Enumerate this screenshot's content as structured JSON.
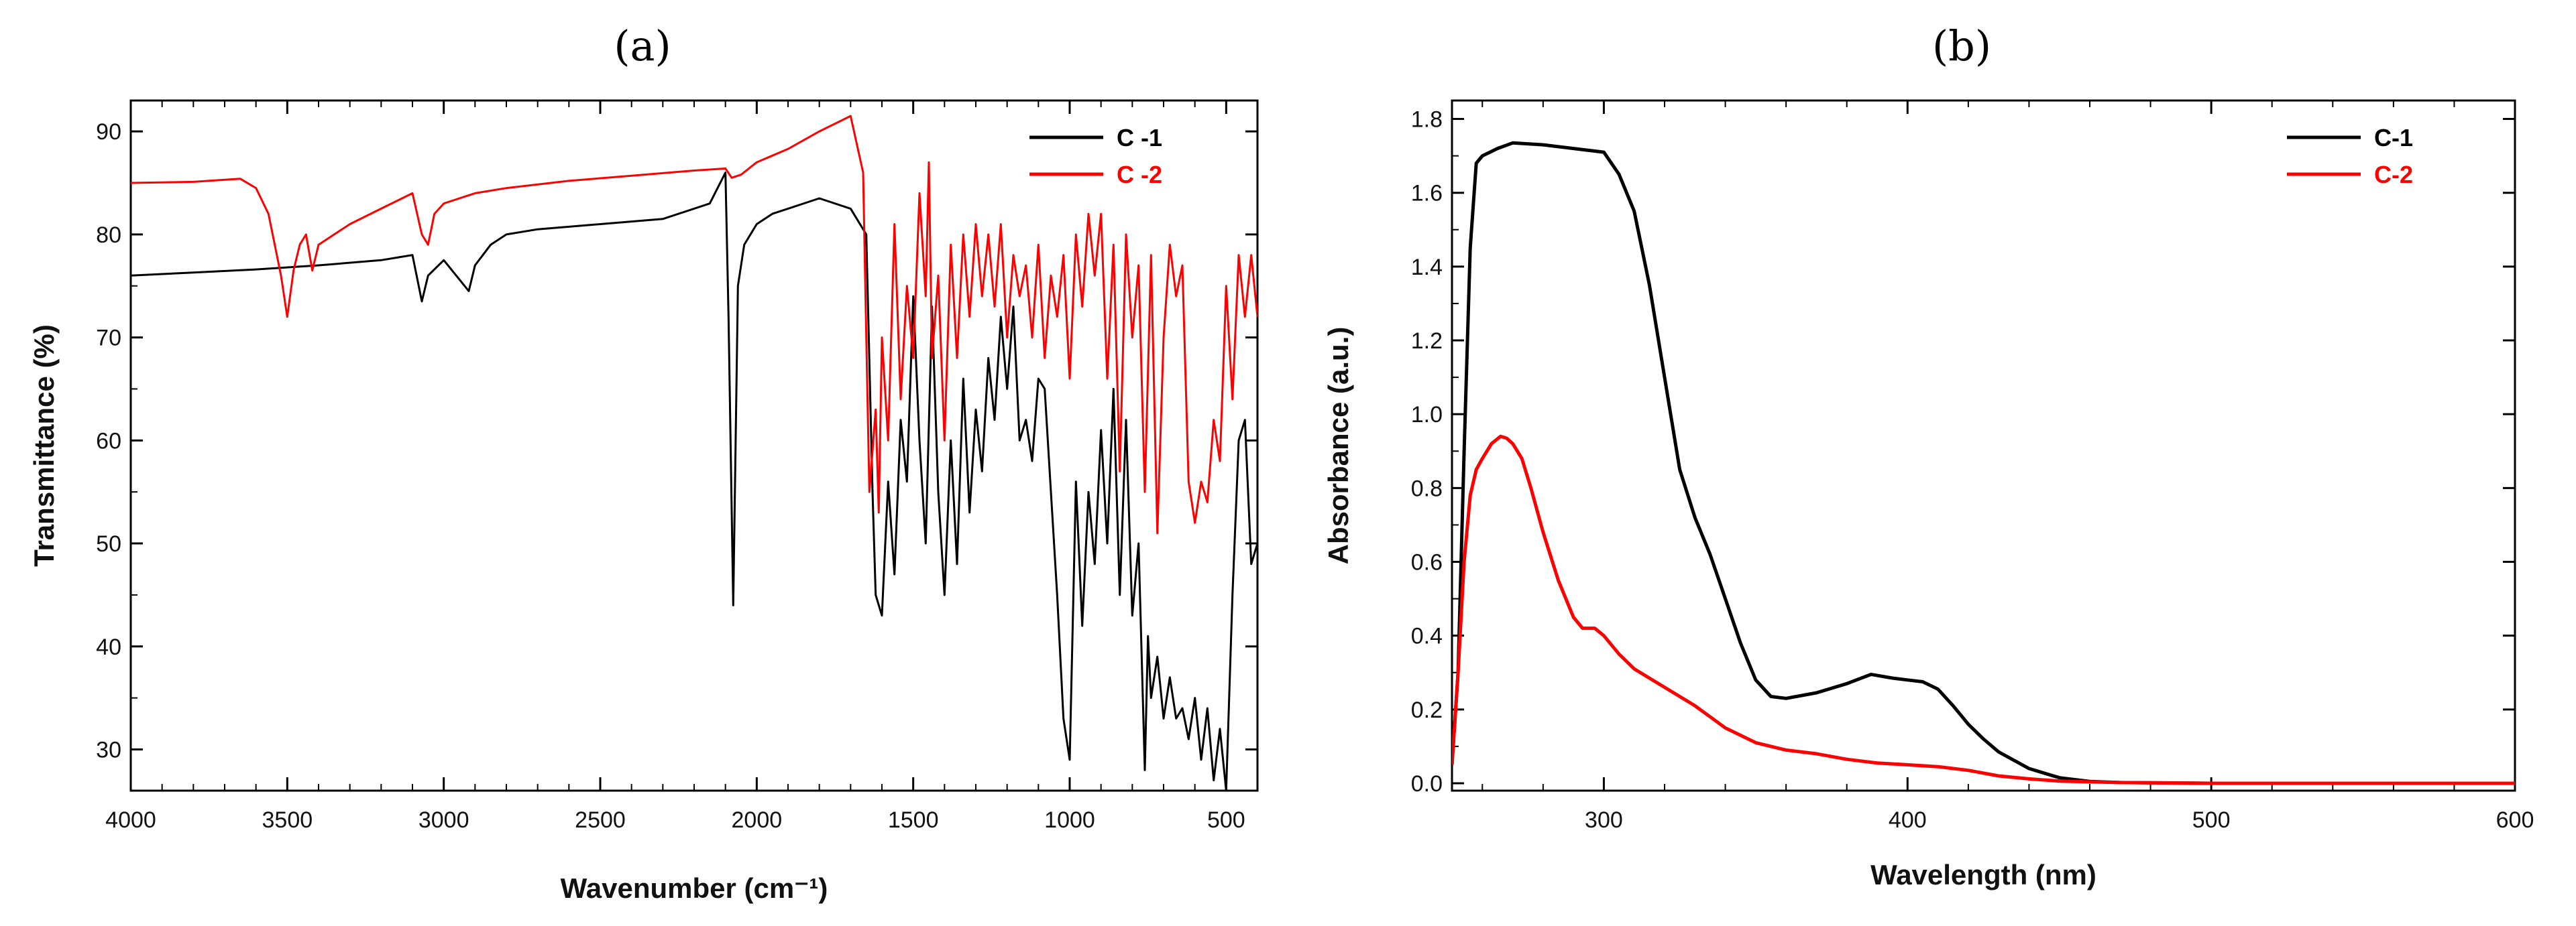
{
  "figure": {
    "panel_a_label": "(a)",
    "panel_b_label": "(b)"
  },
  "chart_data": [
    {
      "type": "line",
      "panel": "a",
      "title": "",
      "xlabel": "Wavenumber (cm⁻¹)",
      "ylabel": "Transmittance (%)",
      "xlim": [
        4000,
        400
      ],
      "ylim": [
        26,
        93
      ],
      "x_reversed": true,
      "xticks": [
        4000,
        3500,
        3000,
        2500,
        2000,
        1500,
        1000,
        500
      ],
      "yticks": [
        30,
        40,
        50,
        60,
        70,
        80,
        90
      ],
      "legend_position": "top-right",
      "series": [
        {
          "name": "C -1",
          "color": "#000000",
          "x": [
            4000,
            3800,
            3600,
            3400,
            3200,
            3100,
            3070,
            3050,
            3000,
            2960,
            2920,
            2900,
            2850,
            2800,
            2700,
            2500,
            2300,
            2150,
            2100,
            2090,
            2075,
            2060,
            2040,
            2000,
            1950,
            1900,
            1800,
            1700,
            1650,
            1630,
            1620,
            1600,
            1580,
            1560,
            1540,
            1520,
            1500,
            1480,
            1460,
            1440,
            1420,
            1400,
            1380,
            1360,
            1340,
            1320,
            1300,
            1280,
            1260,
            1240,
            1220,
            1200,
            1180,
            1160,
            1140,
            1120,
            1100,
            1080,
            1060,
            1040,
            1020,
            1000,
            980,
            960,
            940,
            920,
            900,
            880,
            860,
            840,
            820,
            800,
            780,
            760,
            750,
            740,
            720,
            700,
            680,
            660,
            640,
            620,
            600,
            580,
            560,
            540,
            520,
            500,
            480,
            460,
            440,
            420,
            400
          ],
          "values": [
            76,
            76.3,
            76.6,
            77,
            77.5,
            78,
            73.5,
            76,
            77.5,
            76,
            74.5,
            77,
            79,
            80,
            80.5,
            81,
            81.5,
            83,
            86,
            72,
            44,
            75,
            79,
            81,
            82,
            82.5,
            83.5,
            82.5,
            80,
            55,
            45,
            43,
            56,
            47,
            62,
            56,
            74,
            60,
            50,
            73,
            55,
            45,
            60,
            48,
            66,
            53,
            63,
            57,
            68,
            62,
            72,
            65,
            73,
            60,
            62,
            58,
            66,
            65,
            55,
            45,
            33,
            29,
            56,
            42,
            55,
            48,
            61,
            50,
            65,
            45,
            62,
            43,
            50,
            28,
            41,
            35,
            39,
            33,
            37,
            33,
            34,
            31,
            35,
            29,
            34,
            27,
            32,
            26,
            45,
            60,
            62,
            48,
            50
          ]
        },
        {
          "name": "C -2",
          "color": "#ff0000",
          "x": [
            4000,
            3800,
            3650,
            3600,
            3560,
            3520,
            3500,
            3480,
            3460,
            3440,
            3420,
            3400,
            3300,
            3200,
            3100,
            3070,
            3050,
            3030,
            3000,
            2950,
            2900,
            2800,
            2600,
            2400,
            2200,
            2100,
            2080,
            2050,
            2000,
            1900,
            1800,
            1700,
            1660,
            1650,
            1640,
            1620,
            1610,
            1600,
            1580,
            1560,
            1540,
            1520,
            1500,
            1480,
            1460,
            1450,
            1440,
            1420,
            1400,
            1380,
            1360,
            1340,
            1320,
            1300,
            1280,
            1260,
            1240,
            1220,
            1200,
            1180,
            1160,
            1140,
            1120,
            1100,
            1080,
            1060,
            1040,
            1020,
            1000,
            980,
            960,
            940,
            920,
            900,
            880,
            860,
            840,
            820,
            800,
            780,
            760,
            740,
            720,
            700,
            680,
            660,
            640,
            620,
            600,
            580,
            560,
            540,
            520,
            500,
            480,
            460,
            440,
            420,
            400
          ],
          "values": [
            85,
            85.1,
            85.4,
            84.5,
            82,
            76,
            72,
            76.5,
            79,
            80,
            76.5,
            79,
            81,
            82.5,
            84,
            80,
            79,
            82,
            83,
            83.5,
            84,
            84.5,
            85.2,
            85.7,
            86.2,
            86.4,
            85.5,
            85.8,
            87,
            88.3,
            90,
            91.5,
            86,
            70,
            55,
            63,
            53,
            70,
            60,
            81,
            64,
            75,
            68,
            84,
            74,
            87,
            68,
            76,
            60,
            79,
            68,
            80,
            72,
            81,
            74,
            80,
            73,
            81,
            70,
            78,
            74,
            77,
            70,
            79,
            68,
            76,
            72,
            78,
            66,
            80,
            73,
            82,
            76,
            82,
            66,
            79,
            57,
            80,
            70,
            77,
            55,
            78,
            51,
            70,
            79,
            74,
            77,
            56,
            52,
            56,
            54,
            62,
            58,
            75,
            64,
            78,
            72,
            78,
            72
          ]
        }
      ]
    },
    {
      "type": "line",
      "panel": "b",
      "title": "",
      "xlabel": "Wavelength (nm)",
      "ylabel": "Absorbance (a.u.)",
      "xlim": [
        250,
        600
      ],
      "ylim": [
        -0.02,
        1.85
      ],
      "x_reversed": false,
      "xticks": [
        300,
        400,
        500,
        600
      ],
      "yticks": [
        0.0,
        0.2,
        0.4,
        0.6,
        0.8,
        1.0,
        1.2,
        1.4,
        1.6,
        1.8
      ],
      "ytick_labels": [
        "0.0",
        "0.2",
        "0.4",
        "0.6",
        "0.8",
        "1.0",
        "1.2",
        "1.4",
        "1.6",
        "1.8"
      ],
      "legend_position": "top-right",
      "series": [
        {
          "name": "C-1",
          "color": "#000000",
          "x": [
            250,
            252,
            254,
            256,
            258,
            260,
            265,
            270,
            280,
            290,
            300,
            305,
            310,
            315,
            320,
            325,
            330,
            335,
            340,
            345,
            350,
            355,
            360,
            370,
            380,
            388,
            395,
            400,
            405,
            410,
            415,
            420,
            425,
            430,
            440,
            450,
            460,
            470,
            500,
            550,
            600
          ],
          "values": [
            0.05,
            0.3,
            0.9,
            1.45,
            1.68,
            1.7,
            1.72,
            1.735,
            1.73,
            1.72,
            1.71,
            1.65,
            1.55,
            1.35,
            1.1,
            0.85,
            0.72,
            0.62,
            0.5,
            0.38,
            0.28,
            0.235,
            0.23,
            0.245,
            0.27,
            0.295,
            0.285,
            0.28,
            0.275,
            0.255,
            0.21,
            0.16,
            0.12,
            0.085,
            0.04,
            0.015,
            0.005,
            0.002,
            0.0,
            0.0,
            0.0
          ]
        },
        {
          "name": "C-2",
          "color": "#ff0000",
          "x": [
            250,
            252,
            254,
            256,
            258,
            260,
            263,
            266,
            268,
            270,
            273,
            276,
            280,
            285,
            290,
            293,
            297,
            300,
            305,
            310,
            320,
            330,
            340,
            350,
            360,
            370,
            380,
            390,
            400,
            410,
            420,
            430,
            440,
            450,
            470,
            500,
            550,
            600
          ],
          "values": [
            0.05,
            0.3,
            0.6,
            0.78,
            0.85,
            0.88,
            0.92,
            0.94,
            0.935,
            0.92,
            0.88,
            0.8,
            0.68,
            0.55,
            0.45,
            0.42,
            0.42,
            0.4,
            0.35,
            0.31,
            0.26,
            0.21,
            0.15,
            0.11,
            0.09,
            0.08,
            0.065,
            0.055,
            0.05,
            0.045,
            0.035,
            0.02,
            0.012,
            0.006,
            0.002,
            0.0,
            0.0,
            0.0
          ]
        }
      ]
    }
  ]
}
